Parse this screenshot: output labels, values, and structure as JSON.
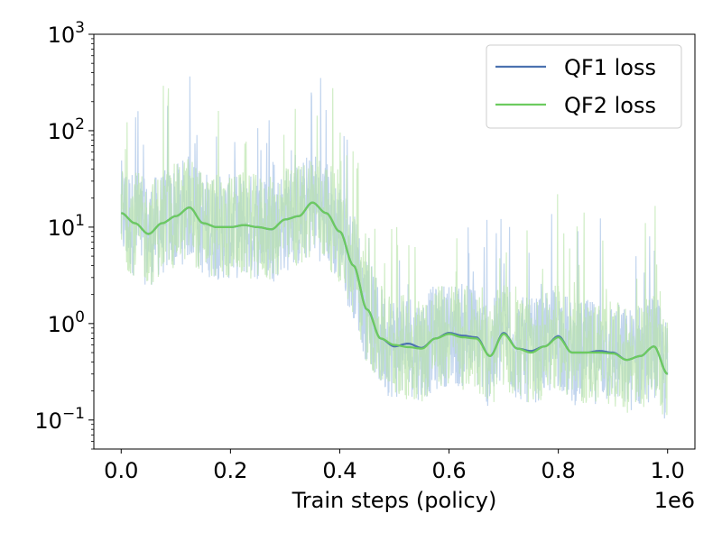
{
  "chart_data": {
    "type": "line",
    "title": "",
    "xlabel": "Train steps (policy)",
    "ylabel": "",
    "x_offset_label": "1e6",
    "x_scale": "linear",
    "y_scale": "log",
    "xlim": [
      -0.05,
      1.05
    ],
    "ylim": [
      0.05,
      1000
    ],
    "x_ticks": [
      0.0,
      0.2,
      0.4,
      0.6,
      0.8,
      1.0
    ],
    "x_tick_labels": [
      "0.0",
      "0.2",
      "0.4",
      "0.6",
      "0.8",
      "1.0"
    ],
    "y_ticks": [
      0.1,
      1,
      10,
      100,
      1000
    ],
    "y_tick_labels": [
      {
        "base": "10",
        "exp": "−1"
      },
      {
        "base": "10",
        "exp": "0"
      },
      {
        "base": "10",
        "exp": "1"
      },
      {
        "base": "10",
        "exp": "2"
      },
      {
        "base": "10",
        "exp": "3"
      }
    ],
    "grid": false,
    "legend_position": "top-right",
    "series": [
      {
        "name": "QF1 loss",
        "color": "#4c72b0",
        "raw_color": "#aec7e8",
        "x": [
          0.0,
          0.025,
          0.05,
          0.075,
          0.1,
          0.125,
          0.15,
          0.175,
          0.2,
          0.225,
          0.25,
          0.275,
          0.3,
          0.325,
          0.35,
          0.375,
          0.4,
          0.425,
          0.45,
          0.475,
          0.5,
          0.525,
          0.55,
          0.575,
          0.6,
          0.625,
          0.65,
          0.675,
          0.7,
          0.725,
          0.75,
          0.775,
          0.8,
          0.825,
          0.85,
          0.875,
          0.9,
          0.925,
          0.95,
          0.975,
          1.0
        ],
        "y": [
          14,
          11,
          8.5,
          11,
          13,
          16,
          11,
          10,
          10,
          10.5,
          10,
          9.5,
          12,
          13,
          18,
          14,
          9,
          4,
          1.4,
          0.7,
          0.58,
          0.62,
          0.56,
          0.7,
          0.8,
          0.75,
          0.72,
          0.46,
          0.8,
          0.55,
          0.52,
          0.58,
          0.74,
          0.5,
          0.5,
          0.52,
          0.5,
          0.42,
          0.46,
          0.58,
          0.3
        ]
      },
      {
        "name": "QF2 loss",
        "color": "#6ccb5f",
        "raw_color": "#b7e3a8",
        "x": [
          0.0,
          0.025,
          0.05,
          0.075,
          0.1,
          0.125,
          0.15,
          0.175,
          0.2,
          0.225,
          0.25,
          0.275,
          0.3,
          0.325,
          0.35,
          0.375,
          0.4,
          0.425,
          0.45,
          0.475,
          0.5,
          0.525,
          0.55,
          0.575,
          0.6,
          0.625,
          0.65,
          0.675,
          0.7,
          0.725,
          0.75,
          0.775,
          0.8,
          0.825,
          0.85,
          0.875,
          0.9,
          0.925,
          0.95,
          0.975,
          1.0
        ],
        "y": [
          14,
          11,
          8.5,
          11,
          13,
          16,
          11,
          10,
          10,
          10.5,
          10,
          9.5,
          12,
          13,
          18,
          14,
          9,
          4,
          1.4,
          0.7,
          0.6,
          0.57,
          0.55,
          0.7,
          0.78,
          0.72,
          0.7,
          0.46,
          0.78,
          0.55,
          0.5,
          0.58,
          0.72,
          0.5,
          0.5,
          0.5,
          0.49,
          0.42,
          0.46,
          0.58,
          0.3
        ]
      }
    ]
  }
}
